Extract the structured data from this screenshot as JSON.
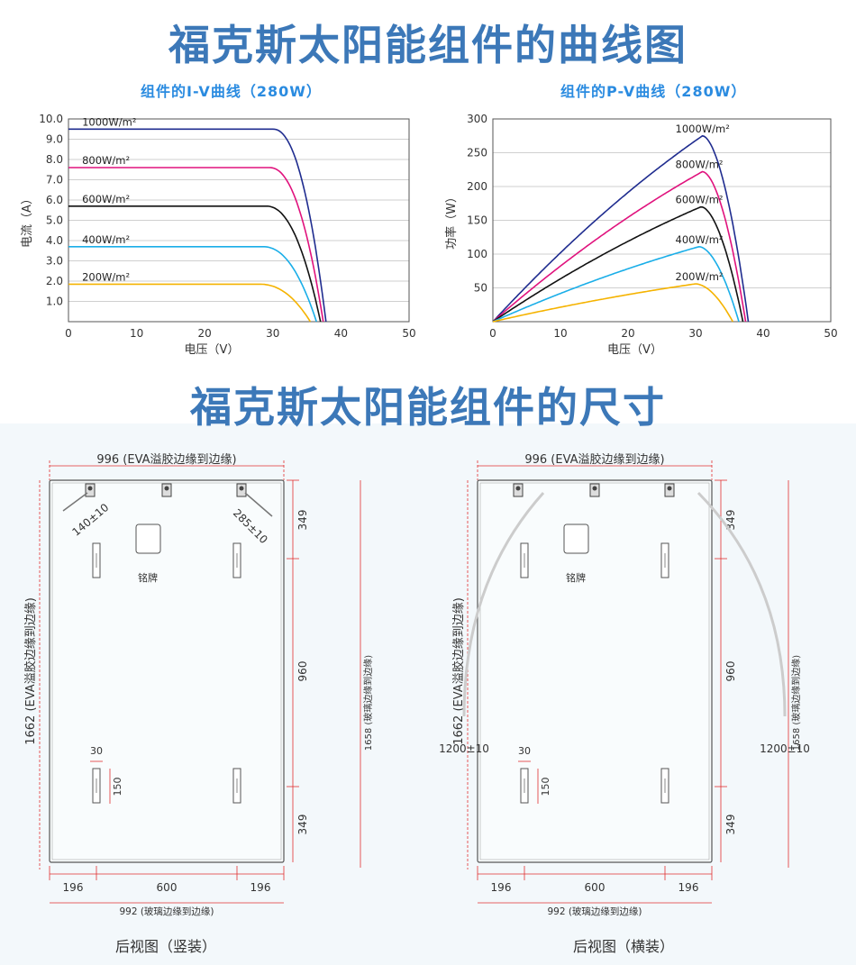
{
  "header": {
    "title": "福克斯太阳能组件的曲线图",
    "section2_title": "福克斯太阳能组件的尺寸"
  },
  "colors": {
    "title": "#3c78b8",
    "subtitle": "#2a8be0",
    "s1000": "#1f2c8f",
    "s800": "#e0127d",
    "s600": "#111111",
    "s400": "#1aaee8",
    "s200": "#f5b300",
    "dim": "#e03030"
  },
  "chart_data": [
    {
      "type": "line",
      "title": "组件的I-V曲线（280W）",
      "xlabel": "电压（V）",
      "ylabel": "电流（A）",
      "xlim": [
        0,
        50
      ],
      "ylim": [
        0,
        10
      ],
      "xticks": [
        "0",
        "10",
        "20",
        "30",
        "40",
        "50"
      ],
      "yticks": [
        "1.0",
        "2.0",
        "3.0",
        "4.0",
        "5.0",
        "6.0",
        "7.0",
        "8.0",
        "9.0",
        "10.0"
      ],
      "grid": true,
      "series": [
        {
          "name": "1000W/m²",
          "isc": 9.5,
          "knee_v": 30.0,
          "voc": 37.8,
          "color_key": "s1000"
        },
        {
          "name": "800W/m²",
          "isc": 7.6,
          "knee_v": 29.5,
          "voc": 37.4,
          "color_key": "s800"
        },
        {
          "name": "600W/m²",
          "isc": 5.7,
          "knee_v": 29.0,
          "voc": 37.0,
          "color_key": "s600"
        },
        {
          "name": "400W/m²",
          "isc": 3.7,
          "knee_v": 28.5,
          "voc": 36.4,
          "color_key": "s400"
        },
        {
          "name": "200W/m²",
          "isc": 1.85,
          "knee_v": 28.0,
          "voc": 35.5,
          "color_key": "s200"
        }
      ]
    },
    {
      "type": "line",
      "title": "组件的P-V曲线（280W）",
      "xlabel": "电压（V）",
      "ylabel": "功率（W）",
      "xlim": [
        0,
        50
      ],
      "ylim": [
        0,
        300
      ],
      "xticks": [
        "0",
        "10",
        "20",
        "30",
        "40",
        "50"
      ],
      "yticks": [
        "50",
        "100",
        "150",
        "200",
        "250",
        "300"
      ],
      "grid": true,
      "series": [
        {
          "name": "1000W/m²",
          "pmax": 275,
          "vmp": 31.0,
          "voc": 37.8,
          "color_key": "s1000"
        },
        {
          "name": "800W/m²",
          "pmax": 222,
          "vmp": 31.0,
          "voc": 37.4,
          "color_key": "s800"
        },
        {
          "name": "600W/m²",
          "pmax": 170,
          "vmp": 30.8,
          "voc": 37.0,
          "color_key": "s600"
        },
        {
          "name": "400W/m²",
          "pmax": 111,
          "vmp": 30.5,
          "voc": 36.4,
          "color_key": "s400"
        },
        {
          "name": "200W/m²",
          "pmax": 56,
          "vmp": 30.0,
          "voc": 35.5,
          "color_key": "s200"
        }
      ]
    }
  ],
  "drawings": {
    "left": {
      "caption": "后视图（竖装）",
      "top_dim": "996 (EVA溢胶边缘到边缘)",
      "left_dim": "1662 (EVA溢胶边缘到边缘)",
      "right_dim": "1658 (玻璃边缘到边缘)",
      "bottom_dim": "992 (玻璃边缘到边缘)",
      "cable_left": "140±10",
      "cable_right": "285±10",
      "nameplate": "铭牌",
      "seg_top": "349",
      "seg_mid": "960",
      "seg_bot": "349",
      "hole_w": "30",
      "hole_h": "150",
      "bot_left": "196",
      "bot_mid": "600",
      "bot_right": "196"
    },
    "right": {
      "caption": "后视图（横装）",
      "top_dim": "996 (EVA溢胶边缘到边缘)",
      "left_dim": "1662 (EVA溢胶边缘到边缘)",
      "right_dim": "1658 (玻璃边缘到边缘)",
      "bottom_dim": "992 (玻璃边缘到边缘)",
      "cable_left": "1200±10",
      "cable_right": "1200±10",
      "nameplate": "铭牌",
      "seg_top": "349",
      "seg_mid": "960",
      "seg_bot": "349",
      "hole_w": "30",
      "hole_h": "150",
      "bot_left": "196",
      "bot_mid": "600",
      "bot_right": "196"
    }
  }
}
